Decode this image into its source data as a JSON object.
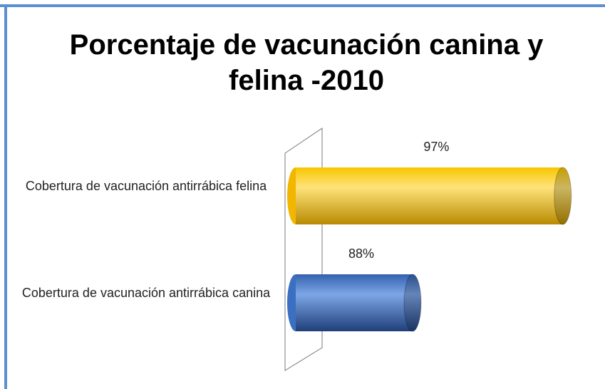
{
  "chart_data": {
    "type": "hbar3d",
    "title": "Porcentaje de vacunación canina y felina -2010",
    "categories": [
      "Cobertura de vacunación antirrábica felina",
      "Cobertura de vacunación antirrábica canina"
    ],
    "values": [
      97,
      88
    ],
    "value_labels": [
      "97%",
      "88%"
    ],
    "colors": [
      "#f2b600",
      "#3b6fc2"
    ],
    "xlim": [
      81,
      100
    ]
  }
}
